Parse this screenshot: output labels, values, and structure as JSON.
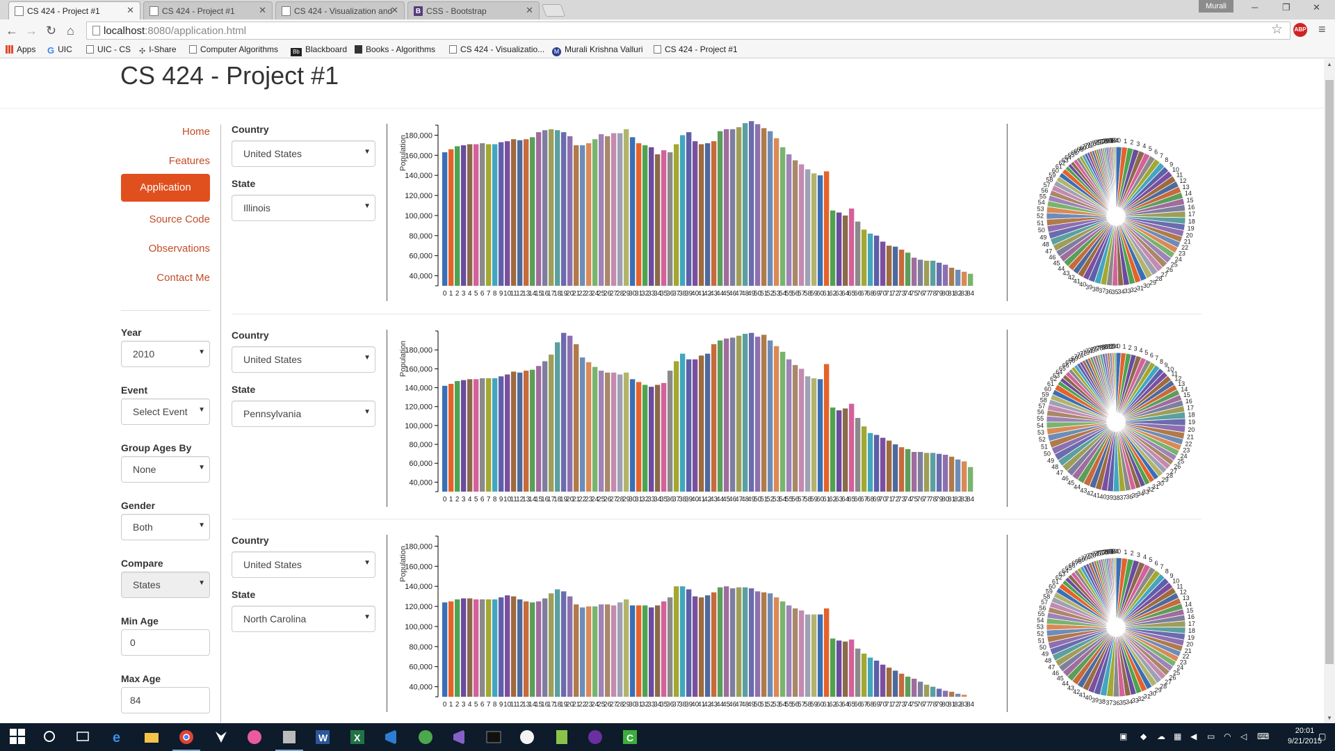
{
  "browser": {
    "tabs": [
      {
        "title": "CS 424 - Project #1",
        "active": true
      },
      {
        "title": "CS 424 - Project #1",
        "active": false
      },
      {
        "title": "CS 424 - Visualization and",
        "active": false
      },
      {
        "title": "CSS - Bootstrap",
        "active": false
      }
    ],
    "user": "Murali",
    "url_host": "localhost",
    "url_path": ":8080/application.html",
    "abp_label": "ABP",
    "bookmarks": [
      "Apps",
      "UIC",
      "UIC - CS",
      "I-Share",
      "Computer Algorithms",
      "Blackboard",
      "Books - Algorithms",
      "CS 424 - Visualizatio...",
      "Murali Krishna Valluri",
      "CS 424 - Project #1"
    ],
    "bookmark_icons": {
      "g": "G",
      "bb": "Bb",
      "m": "M",
      "boot": "B"
    }
  },
  "page": {
    "title": "CS 424 - Project #1",
    "nav": [
      "Home",
      "Features",
      "Application",
      "Source Code",
      "Observations",
      "Contact Me"
    ],
    "nav_active": "Application",
    "accent_color": "#e0501f",
    "link_color": "#c24d28"
  },
  "controls": {
    "year_label": "Year",
    "year_value": "2010",
    "event_label": "Event",
    "event_value": "Select Event",
    "group_label": "Group Ages By",
    "group_value": "None",
    "gender_label": "Gender",
    "gender_value": "Both",
    "compare_label": "Compare",
    "compare_value": "States",
    "min_age_label": "Min Age",
    "min_age_value": "0",
    "max_age_label": "Max Age",
    "max_age_value": "84"
  },
  "rows": [
    {
      "country_label": "Country",
      "country": "United States",
      "state_label": "State",
      "state": "Illinois"
    },
    {
      "country_label": "Country",
      "country": "United States",
      "state_label": "State",
      "state": "Pennsylvania"
    },
    {
      "country_label": "Country",
      "country": "United States",
      "state_label": "State",
      "state": "North Carolina"
    }
  ],
  "chart_data": [
    {
      "type": "bar",
      "ylabel": "Population",
      "xlabel": "",
      "ylim": [
        30000,
        190000
      ],
      "yticks": [
        40000,
        60000,
        80000,
        100000,
        120000,
        140000,
        160000,
        180000
      ],
      "x": "ages 0-84",
      "values": [
        163000,
        166000,
        169000,
        170000,
        171000,
        171000,
        172000,
        171000,
        171000,
        173000,
        174000,
        176000,
        175000,
        176000,
        178000,
        183000,
        185000,
        186000,
        185000,
        183000,
        179000,
        170000,
        170000,
        172000,
        176000,
        181000,
        179000,
        182000,
        182000,
        186000,
        178000,
        172000,
        170000,
        168000,
        161000,
        165000,
        163000,
        171000,
        180000,
        183000,
        174000,
        171000,
        172000,
        174000,
        184000,
        186000,
        186000,
        188000,
        192000,
        194000,
        191000,
        187000,
        184000,
        177000,
        168000,
        161000,
        155000,
        151000,
        146000,
        142000,
        140000,
        144000,
        105000,
        103000,
        100000,
        107000,
        94000,
        86000,
        82000,
        80000,
        74000,
        70000,
        69000,
        66000,
        63000,
        58000,
        56000,
        55000,
        55000,
        53000,
        51000,
        48000,
        46000,
        44000,
        42000
      ]
    },
    {
      "type": "bar",
      "ylabel": "Population",
      "xlabel": "",
      "ylim": [
        30000,
        200000
      ],
      "yticks": [
        40000,
        60000,
        80000,
        100000,
        120000,
        140000,
        160000,
        180000
      ],
      "x": "ages 0-84",
      "values": [
        142000,
        144000,
        147000,
        148000,
        149000,
        149000,
        150000,
        150000,
        150000,
        152000,
        154000,
        157000,
        156000,
        158000,
        159000,
        163000,
        168000,
        175000,
        188000,
        198000,
        195000,
        186000,
        172000,
        167000,
        162000,
        158000,
        156000,
        156000,
        154000,
        156000,
        149000,
        146000,
        143000,
        141000,
        143000,
        145000,
        158000,
        168000,
        176000,
        170000,
        170000,
        174000,
        176000,
        186000,
        190000,
        192000,
        193000,
        195000,
        197000,
        198000,
        194000,
        196000,
        190000,
        184000,
        178000,
        170000,
        164000,
        160000,
        152000,
        150000,
        149000,
        165000,
        119000,
        116000,
        118000,
        123000,
        108000,
        99000,
        92000,
        90000,
        87000,
        84000,
        80000,
        77000,
        75000,
        72000,
        72000,
        71000,
        71000,
        70000,
        69000,
        67000,
        64000,
        62000,
        56000
      ]
    },
    {
      "type": "bar",
      "ylabel": "Population",
      "xlabel": "",
      "ylim": [
        30000,
        190000
      ],
      "yticks": [
        40000,
        60000,
        80000,
        100000,
        120000,
        140000,
        160000,
        180000
      ],
      "x": "ages 0-84",
      "values": [
        124000,
        125000,
        127000,
        128000,
        128000,
        127000,
        127000,
        127000,
        127000,
        129000,
        131000,
        130000,
        127000,
        125000,
        124000,
        125000,
        128000,
        133000,
        137000,
        135000,
        130000,
        122000,
        119000,
        120000,
        120000,
        122000,
        122000,
        121000,
        124000,
        127000,
        121000,
        121000,
        121000,
        119000,
        121000,
        125000,
        129000,
        140000,
        140000,
        137000,
        130000,
        129000,
        131000,
        134000,
        139000,
        140000,
        138000,
        139000,
        139000,
        138000,
        135000,
        134000,
        133000,
        129000,
        125000,
        121000,
        118000,
        116000,
        112000,
        112000,
        112000,
        118000,
        88000,
        86000,
        85000,
        87000,
        78000,
        73000,
        69000,
        66000,
        62000,
        59000,
        56000,
        53000,
        50000,
        48000,
        45000,
        42000,
        40000,
        38000,
        36000,
        35000,
        33000,
        32000,
        30000
      ]
    },
    {
      "type": "pie",
      "title": "",
      "categories": "ages 0-84 (one slice per age, labelled 0..84)",
      "note": "pie slices proportional to the corresponding bar chart values"
    }
  ],
  "taskbar": {
    "time": "20:01",
    "date": "9/21/2015"
  }
}
